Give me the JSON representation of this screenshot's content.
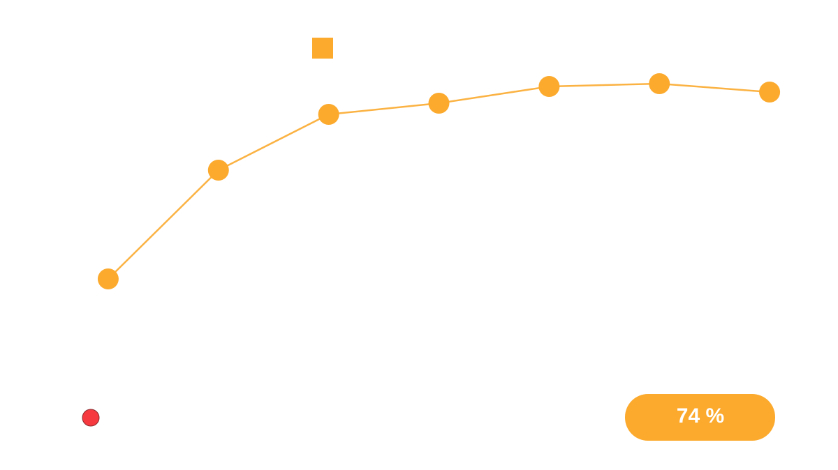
{
  "chart_data": {
    "type": "line",
    "categories": [
      null,
      null,
      null,
      null,
      null,
      null,
      null
    ],
    "series": [
      {
        "color": "#fbaa2e",
        "values": [
          25,
          64,
          84,
          88,
          94,
          95,
          92
        ]
      }
    ],
    "ylim": [
      0,
      100
    ],
    "annotation": "74 %"
  }
}
